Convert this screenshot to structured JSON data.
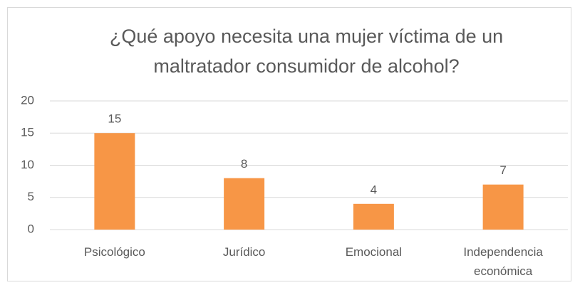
{
  "chart_data": {
    "type": "bar",
    "title": "¿Qué apoyo necesita una mujer víctima de un maltratador consumidor de alcohol?",
    "categories": [
      "Psicológico",
      "Jurídico",
      "Emocional",
      "Independencia económica"
    ],
    "values": [
      15,
      8,
      4,
      7
    ],
    "color": "#f79646",
    "ylim": [
      0,
      20
    ],
    "yticks": [
      0,
      5,
      10,
      15,
      20
    ],
    "grid": true
  }
}
